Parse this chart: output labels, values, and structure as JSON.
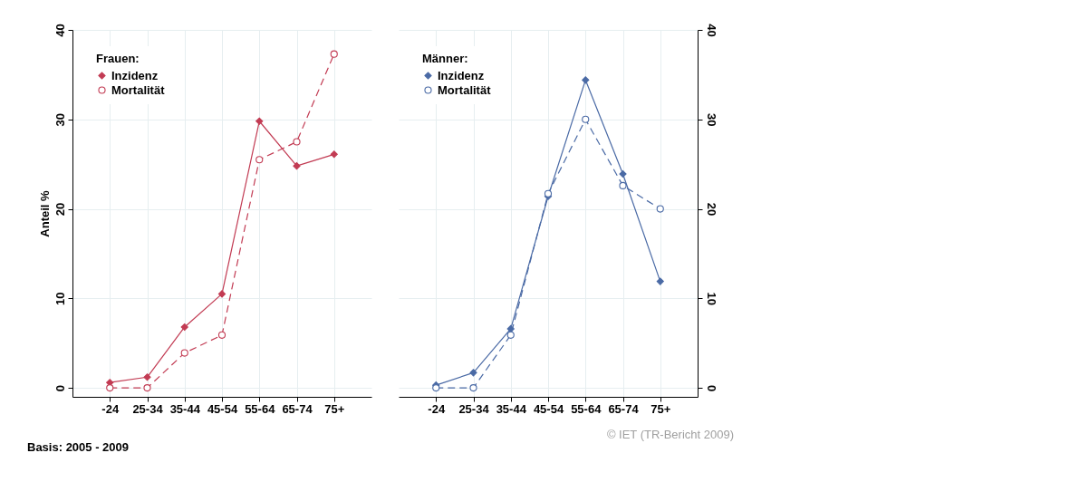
{
  "chart_data": [
    {
      "type": "line",
      "legend_title": "Frauen:",
      "ylabel": "Anteil %",
      "categories": [
        "-24",
        "25-34",
        "35-44",
        "45-54",
        "55-64",
        "65-74",
        "75+"
      ],
      "ylim": [
        -1,
        40
      ],
      "yticks": [
        0,
        10,
        20,
        30,
        40
      ],
      "grid": true,
      "legend": "top left",
      "annotations": [
        "Basis: 2005 - 2009"
      ],
      "series": [
        {
          "name": "Inzidenz",
          "color": "#c23b53",
          "marker": "diamond",
          "line_style": "solid",
          "values": [
            0.6,
            1.2,
            6.8,
            10.5,
            29.8,
            24.8,
            26.1
          ]
        },
        {
          "name": "Mortalität",
          "color": "#c23b53",
          "marker": "circle",
          "line_style": "dashed",
          "values": [
            0,
            0,
            3.9,
            5.9,
            25.5,
            27.5,
            37.3
          ]
        }
      ]
    },
    {
      "type": "line",
      "legend_title": "Männer:",
      "categories": [
        "-24",
        "25-34",
        "35-44",
        "45-54",
        "55-64",
        "65-74",
        "75+"
      ],
      "ylim": [
        -1,
        40
      ],
      "yticks": [
        0,
        10,
        20,
        30,
        40
      ],
      "grid": true,
      "legend": "top left",
      "annotations": [
        "© IET (TR-Bericht 2009)"
      ],
      "series": [
        {
          "name": "Inzidenz",
          "color": "#4a6aa5",
          "marker": "diamond",
          "line_style": "solid",
          "values": [
            0.3,
            1.7,
            6.6,
            21.4,
            34.4,
            23.9,
            11.9
          ]
        },
        {
          "name": "Mortalität",
          "color": "#4a6aa5",
          "marker": "circle",
          "line_style": "dashed",
          "values": [
            0,
            0,
            5.9,
            21.7,
            30.0,
            22.6,
            20.0
          ]
        }
      ]
    }
  ]
}
